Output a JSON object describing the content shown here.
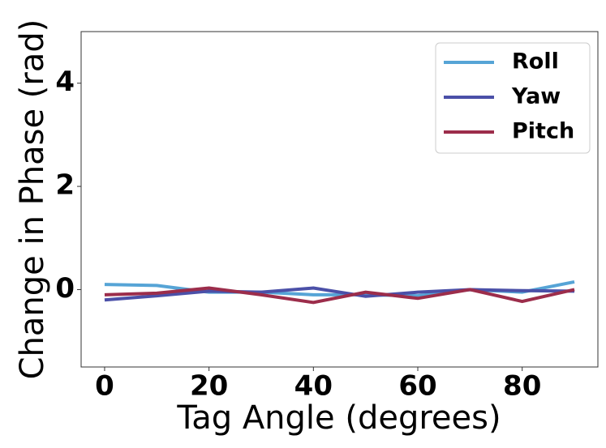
{
  "chart_data": {
    "type": "line",
    "x_label": "Tag Angle (degrees)",
    "y_label": "Change in Phase (rad)",
    "x": [
      0,
      10,
      20,
      30,
      40,
      50,
      60,
      70,
      80,
      90
    ],
    "series": [
      {
        "name": "Roll",
        "color": "#56a4d6",
        "values": [
          0.1,
          0.08,
          -0.05,
          -0.05,
          -0.1,
          -0.1,
          -0.12,
          0,
          -0.05,
          0.15
        ]
      },
      {
        "name": "Yaw",
        "color": "#4b50a8",
        "values": [
          -0.2,
          -0.12,
          -0.03,
          -0.05,
          0.03,
          -0.13,
          -0.05,
          0,
          -0.02,
          -0.03
        ]
      },
      {
        "name": "Pitch",
        "color": "#9c2d4b",
        "values": [
          -0.1,
          -0.07,
          0.03,
          -0.1,
          -0.25,
          -0.05,
          -0.17,
          0,
          -0.23,
          0
        ]
      }
    ],
    "xlim": [
      -4.5,
      94.5
    ],
    "ylim": [
      -1.5,
      5
    ],
    "xticks": [
      0,
      20,
      40,
      60,
      80
    ],
    "yticks": [
      0,
      2,
      4
    ],
    "legend": "upper right"
  }
}
